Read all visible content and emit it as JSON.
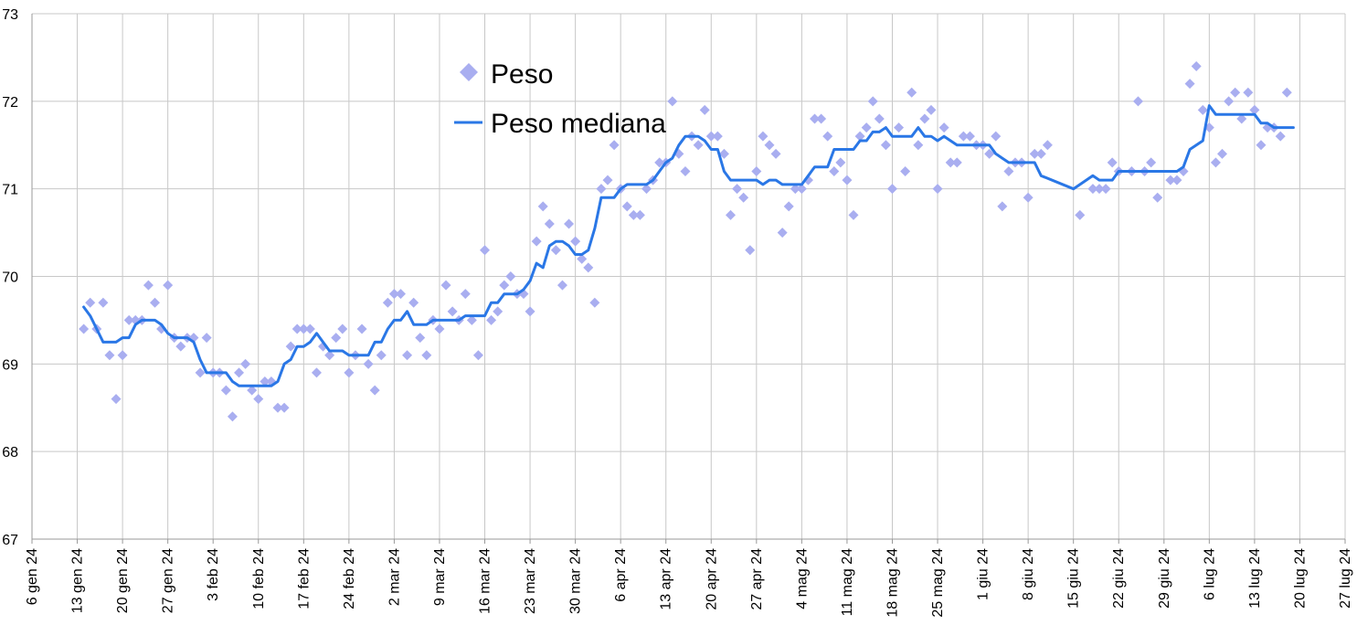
{
  "chart_data": {
    "type": "line",
    "title": "",
    "xlabel": "",
    "ylabel": "",
    "ylim": [
      67,
      73
    ],
    "yticks": [
      "67",
      "68",
      "69",
      "70",
      "71",
      "72",
      "73"
    ],
    "xlim": [
      "2024-01-06",
      "2024-07-27"
    ],
    "xtick_labels": [
      "6 gen 24",
      "13 gen 24",
      "20 gen 24",
      "27 gen 24",
      "3 feb 24",
      "10 feb 24",
      "17 feb 24",
      "24 feb 24",
      "2 mar 24",
      "9 mar 24",
      "16 mar 24",
      "23 mar 24",
      "30 mar 24",
      "6 apr 24",
      "13 apr 24",
      "20 apr 24",
      "27 apr 24",
      "4 mag 24",
      "11 mag 24",
      "18 mag 24",
      "25 mag 24",
      "1 giu 24",
      "8 giu 24",
      "15 giu 24",
      "22 giu 24",
      "29 giu 24",
      "6 lug 24",
      "13 lug 24",
      "20 lug 24",
      "27 lug 24"
    ],
    "grid": true,
    "legend_position": "top-center",
    "colors": {
      "scatter": "#a9aef0",
      "line": "#2a77e6",
      "grid": "#c8c8c8",
      "axis": "#999999"
    },
    "series": [
      {
        "name": "Peso",
        "kind": "scatter",
        "marker": "diamond",
        "x": [
          "2024-01-14",
          "2024-01-15",
          "2024-01-16",
          "2024-01-17",
          "2024-01-18",
          "2024-01-19",
          "2024-01-20",
          "2024-01-21",
          "2024-01-22",
          "2024-01-23",
          "2024-01-24",
          "2024-01-25",
          "2024-01-26",
          "2024-01-27",
          "2024-01-28",
          "2024-01-29",
          "2024-01-30",
          "2024-01-31",
          "2024-02-01",
          "2024-02-02",
          "2024-02-03",
          "2024-02-04",
          "2024-02-05",
          "2024-02-06",
          "2024-02-07",
          "2024-02-08",
          "2024-02-09",
          "2024-02-10",
          "2024-02-11",
          "2024-02-12",
          "2024-02-13",
          "2024-02-14",
          "2024-02-15",
          "2024-02-16",
          "2024-02-17",
          "2024-02-18",
          "2024-02-19",
          "2024-02-20",
          "2024-02-21",
          "2024-02-22",
          "2024-02-23",
          "2024-02-24",
          "2024-02-25",
          "2024-02-26",
          "2024-02-27",
          "2024-02-28",
          "2024-02-29",
          "2024-03-01",
          "2024-03-02",
          "2024-03-03",
          "2024-03-04",
          "2024-03-05",
          "2024-03-06",
          "2024-03-07",
          "2024-03-08",
          "2024-03-09",
          "2024-03-10",
          "2024-03-11",
          "2024-03-12",
          "2024-03-13",
          "2024-03-14",
          "2024-03-15",
          "2024-03-16",
          "2024-03-17",
          "2024-03-18",
          "2024-03-19",
          "2024-03-20",
          "2024-03-21",
          "2024-03-22",
          "2024-03-23",
          "2024-03-24",
          "2024-03-25",
          "2024-03-26",
          "2024-03-27",
          "2024-03-28",
          "2024-03-29",
          "2024-03-30",
          "2024-03-31",
          "2024-04-01",
          "2024-04-02",
          "2024-04-03",
          "2024-04-04",
          "2024-04-05",
          "2024-04-06",
          "2024-04-07",
          "2024-04-08",
          "2024-04-09",
          "2024-04-10",
          "2024-04-11",
          "2024-04-12",
          "2024-04-13",
          "2024-04-14",
          "2024-04-15",
          "2024-04-16",
          "2024-04-17",
          "2024-04-18",
          "2024-04-19",
          "2024-04-20",
          "2024-04-21",
          "2024-04-22",
          "2024-04-23",
          "2024-04-24",
          "2024-04-25",
          "2024-04-26",
          "2024-04-27",
          "2024-04-28",
          "2024-04-29",
          "2024-04-30",
          "2024-05-01",
          "2024-05-02",
          "2024-05-03",
          "2024-05-04",
          "2024-05-05",
          "2024-05-06",
          "2024-05-07",
          "2024-05-08",
          "2024-05-09",
          "2024-05-10",
          "2024-05-11",
          "2024-05-12",
          "2024-05-13",
          "2024-05-14",
          "2024-05-15",
          "2024-05-16",
          "2024-05-17",
          "2024-05-18",
          "2024-05-19",
          "2024-05-20",
          "2024-05-21",
          "2024-05-22",
          "2024-05-23",
          "2024-05-24",
          "2024-05-25",
          "2024-05-26",
          "2024-05-27",
          "2024-05-28",
          "2024-05-29",
          "2024-05-30",
          "2024-05-31",
          "2024-06-01",
          "2024-06-02",
          "2024-06-03",
          "2024-06-04",
          "2024-06-05",
          "2024-06-06",
          "2024-06-07",
          "2024-06-08",
          "2024-06-09",
          "2024-06-10",
          "2024-06-11",
          "2024-06-16",
          "2024-06-18",
          "2024-06-19",
          "2024-06-20",
          "2024-06-21",
          "2024-06-22",
          "2024-06-24",
          "2024-06-25",
          "2024-06-26",
          "2024-06-27",
          "2024-06-28",
          "2024-06-30",
          "2024-07-01",
          "2024-07-02",
          "2024-07-03",
          "2024-07-04",
          "2024-07-05",
          "2024-07-06",
          "2024-07-07",
          "2024-07-08",
          "2024-07-09",
          "2024-07-10",
          "2024-07-11",
          "2024-07-12",
          "2024-07-13",
          "2024-07-14",
          "2024-07-15",
          "2024-07-16",
          "2024-07-17",
          "2024-07-18"
        ],
        "y": [
          69.4,
          69.7,
          69.4,
          69.7,
          69.1,
          68.6,
          69.1,
          69.5,
          69.5,
          69.5,
          69.9,
          69.7,
          69.4,
          69.9,
          69.3,
          69.2,
          69.3,
          69.3,
          68.9,
          69.3,
          68.9,
          68.9,
          68.7,
          68.4,
          68.9,
          69.0,
          68.7,
          68.6,
          68.8,
          68.8,
          68.5,
          68.5,
          69.2,
          69.4,
          69.4,
          69.4,
          68.9,
          69.2,
          69.1,
          69.3,
          69.4,
          68.9,
          69.1,
          69.4,
          69.0,
          68.7,
          69.1,
          69.7,
          69.8,
          69.8,
          69.1,
          69.7,
          69.3,
          69.1,
          69.5,
          69.4,
          69.9,
          69.6,
          69.5,
          69.8,
          69.5,
          69.1,
          70.3,
          69.5,
          69.6,
          69.9,
          70.0,
          69.8,
          69.8,
          69.6,
          70.4,
          70.8,
          70.6,
          70.3,
          69.9,
          70.6,
          70.4,
          70.2,
          70.1,
          69.7,
          71.0,
          71.1,
          71.5,
          71.0,
          70.8,
          70.7,
          70.7,
          71.0,
          71.1,
          71.3,
          71.3,
          72.0,
          71.4,
          71.2,
          71.6,
          71.5,
          71.9,
          71.6,
          71.6,
          71.4,
          70.7,
          71.0,
          70.9,
          70.3,
          71.2,
          71.6,
          71.5,
          71.4,
          70.5,
          70.8,
          71.0,
          71.0,
          71.1,
          71.8,
          71.8,
          71.6,
          71.2,
          71.3,
          71.1,
          70.7,
          71.6,
          71.7,
          72.0,
          71.8,
          71.5,
          71.0,
          71.7,
          71.2,
          72.1,
          71.5,
          71.8,
          71.9,
          71.0,
          71.7,
          71.3,
          71.3,
          71.6,
          71.6,
          71.5,
          71.5,
          71.4,
          71.6,
          70.8,
          71.2,
          71.3,
          71.3,
          70.9,
          71.4,
          71.4,
          71.5,
          70.7,
          71.0,
          71.0,
          71.0,
          71.3,
          71.2,
          71.2,
          72.0,
          71.2,
          71.3,
          70.9,
          71.1,
          71.1,
          71.2,
          72.2,
          72.4,
          71.9,
          71.7,
          71.3,
          71.4,
          72.0,
          72.1,
          71.8,
          72.1,
          71.9,
          71.5,
          71.7,
          71.7,
          71.6,
          72.1
        ]
      },
      {
        "name": "Peso mediana",
        "kind": "line",
        "x": [
          "2024-01-14",
          "2024-01-15",
          "2024-01-16",
          "2024-01-17",
          "2024-01-18",
          "2024-01-19",
          "2024-01-20",
          "2024-01-21",
          "2024-01-22",
          "2024-01-23",
          "2024-01-24",
          "2024-01-25",
          "2024-01-26",
          "2024-01-27",
          "2024-01-28",
          "2024-01-29",
          "2024-01-30",
          "2024-01-31",
          "2024-02-01",
          "2024-02-02",
          "2024-02-03",
          "2024-02-04",
          "2024-02-05",
          "2024-02-06",
          "2024-02-07",
          "2024-02-08",
          "2024-02-09",
          "2024-02-10",
          "2024-02-11",
          "2024-02-12",
          "2024-02-13",
          "2024-02-14",
          "2024-02-15",
          "2024-02-16",
          "2024-02-17",
          "2024-02-18",
          "2024-02-19",
          "2024-02-20",
          "2024-02-21",
          "2024-02-22",
          "2024-02-23",
          "2024-02-24",
          "2024-02-25",
          "2024-02-26",
          "2024-02-27",
          "2024-02-28",
          "2024-02-29",
          "2024-03-01",
          "2024-03-02",
          "2024-03-03",
          "2024-03-04",
          "2024-03-05",
          "2024-03-06",
          "2024-03-07",
          "2024-03-08",
          "2024-03-09",
          "2024-03-10",
          "2024-03-11",
          "2024-03-12",
          "2024-03-13",
          "2024-03-14",
          "2024-03-15",
          "2024-03-16",
          "2024-03-17",
          "2024-03-18",
          "2024-03-19",
          "2024-03-20",
          "2024-03-21",
          "2024-03-22",
          "2024-03-23",
          "2024-03-24",
          "2024-03-25",
          "2024-03-26",
          "2024-03-27",
          "2024-03-28",
          "2024-03-29",
          "2024-03-30",
          "2024-03-31",
          "2024-04-01",
          "2024-04-02",
          "2024-04-03",
          "2024-04-04",
          "2024-04-05",
          "2024-04-06",
          "2024-04-07",
          "2024-04-08",
          "2024-04-09",
          "2024-04-10",
          "2024-04-11",
          "2024-04-12",
          "2024-04-13",
          "2024-04-14",
          "2024-04-15",
          "2024-04-16",
          "2024-04-17",
          "2024-04-18",
          "2024-04-19",
          "2024-04-20",
          "2024-04-21",
          "2024-04-22",
          "2024-04-23",
          "2024-04-24",
          "2024-04-25",
          "2024-04-26",
          "2024-04-27",
          "2024-04-28",
          "2024-04-29",
          "2024-04-30",
          "2024-05-01",
          "2024-05-02",
          "2024-05-03",
          "2024-05-04",
          "2024-05-05",
          "2024-05-06",
          "2024-05-07",
          "2024-05-08",
          "2024-05-09",
          "2024-05-10",
          "2024-05-11",
          "2024-05-12",
          "2024-05-13",
          "2024-05-14",
          "2024-05-15",
          "2024-05-16",
          "2024-05-17",
          "2024-05-18",
          "2024-05-19",
          "2024-05-20",
          "2024-05-21",
          "2024-05-22",
          "2024-05-23",
          "2024-05-24",
          "2024-05-25",
          "2024-05-26",
          "2024-05-27",
          "2024-05-28",
          "2024-05-29",
          "2024-05-30",
          "2024-05-31",
          "2024-06-01",
          "2024-06-02",
          "2024-06-03",
          "2024-06-04",
          "2024-06-05",
          "2024-06-06",
          "2024-06-07",
          "2024-06-08",
          "2024-06-09",
          "2024-06-10",
          "2024-06-15",
          "2024-06-18",
          "2024-06-19",
          "2024-06-20",
          "2024-06-21",
          "2024-06-22",
          "2024-06-30",
          "2024-07-01",
          "2024-07-02",
          "2024-07-03",
          "2024-07-04",
          "2024-07-05",
          "2024-07-06",
          "2024-07-07",
          "2024-07-08",
          "2024-07-09",
          "2024-07-10",
          "2024-07-11",
          "2024-07-12",
          "2024-07-13",
          "2024-07-14",
          "2024-07-15",
          "2024-07-16",
          "2024-07-17",
          "2024-07-18",
          "2024-07-19"
        ],
        "y": [
          69.65,
          69.55,
          69.4,
          69.25,
          69.25,
          69.25,
          69.3,
          69.3,
          69.45,
          69.5,
          69.5,
          69.5,
          69.45,
          69.35,
          69.3,
          69.3,
          69.3,
          69.25,
          69.05,
          68.9,
          68.9,
          68.9,
          68.9,
          68.8,
          68.75,
          68.75,
          68.75,
          68.75,
          68.75,
          68.75,
          68.8,
          69.0,
          69.05,
          69.2,
          69.2,
          69.25,
          69.35,
          69.25,
          69.15,
          69.15,
          69.15,
          69.1,
          69.1,
          69.1,
          69.1,
          69.25,
          69.25,
          69.4,
          69.5,
          69.5,
          69.6,
          69.45,
          69.45,
          69.45,
          69.5,
          69.5,
          69.5,
          69.5,
          69.5,
          69.55,
          69.55,
          69.55,
          69.55,
          69.7,
          69.7,
          69.8,
          69.8,
          69.8,
          69.85,
          69.95,
          70.15,
          70.1,
          70.35,
          70.4,
          70.4,
          70.35,
          70.25,
          70.25,
          70.3,
          70.55,
          70.9,
          70.9,
          70.9,
          71.0,
          71.05,
          71.05,
          71.05,
          71.05,
          71.1,
          71.2,
          71.3,
          71.35,
          71.5,
          71.6,
          71.6,
          71.6,
          71.55,
          71.45,
          71.45,
          71.2,
          71.1,
          71.1,
          71.1,
          71.1,
          71.1,
          71.05,
          71.1,
          71.1,
          71.05,
          71.05,
          71.05,
          71.05,
          71.15,
          71.25,
          71.25,
          71.25,
          71.45,
          71.45,
          71.45,
          71.45,
          71.55,
          71.55,
          71.65,
          71.65,
          71.7,
          71.6,
          71.6,
          71.6,
          71.6,
          71.7,
          71.6,
          71.6,
          71.55,
          71.6,
          71.55,
          71.5,
          71.5,
          71.5,
          71.5,
          71.5,
          71.5,
          71.4,
          71.35,
          71.3,
          71.3,
          71.3,
          71.3,
          71.3,
          71.15,
          71.0,
          71.15,
          71.1,
          71.1,
          71.1,
          71.2,
          71.2,
          71.2,
          71.25,
          71.45,
          71.5,
          71.55,
          71.95,
          71.85,
          71.85,
          71.85,
          71.85,
          71.85,
          71.85,
          71.85,
          71.75,
          71.75,
          71.7,
          71.7,
          71.7,
          71.7
        ]
      }
    ]
  }
}
